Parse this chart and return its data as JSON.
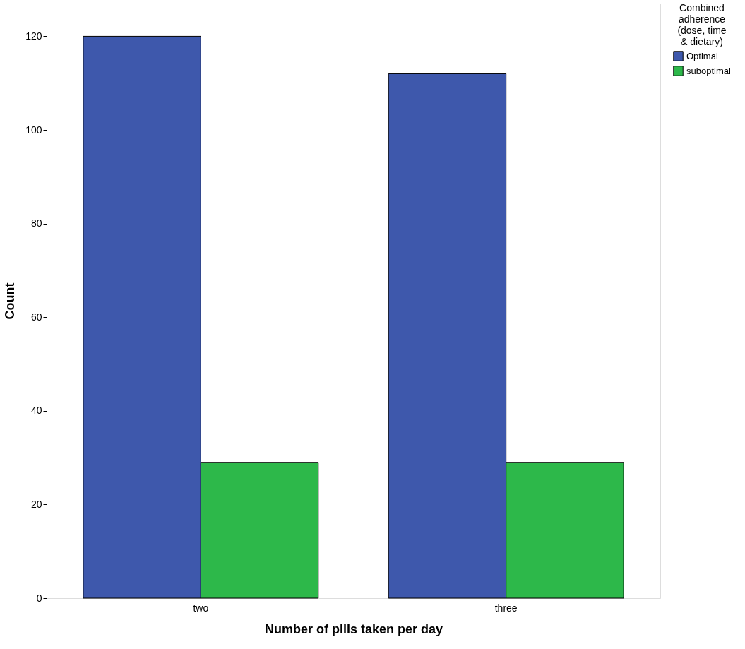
{
  "chart_data": {
    "type": "bar",
    "xlabel": "Number of pills taken per day",
    "ylabel": "Count",
    "legend_title": "Combined adherence (dose, time & dietary)",
    "categories": [
      "two",
      "three"
    ],
    "series": [
      {
        "name": "Optimal",
        "color": "#3e58ac",
        "values": [
          120,
          112
        ]
      },
      {
        "name": "suboptimal",
        "color": "#2db84a",
        "values": [
          29,
          29
        ]
      }
    ],
    "ylim": [
      0,
      127
    ],
    "yticks": [
      0,
      20,
      40,
      60,
      80,
      100,
      120
    ],
    "grid": false,
    "legend": "top right"
  }
}
